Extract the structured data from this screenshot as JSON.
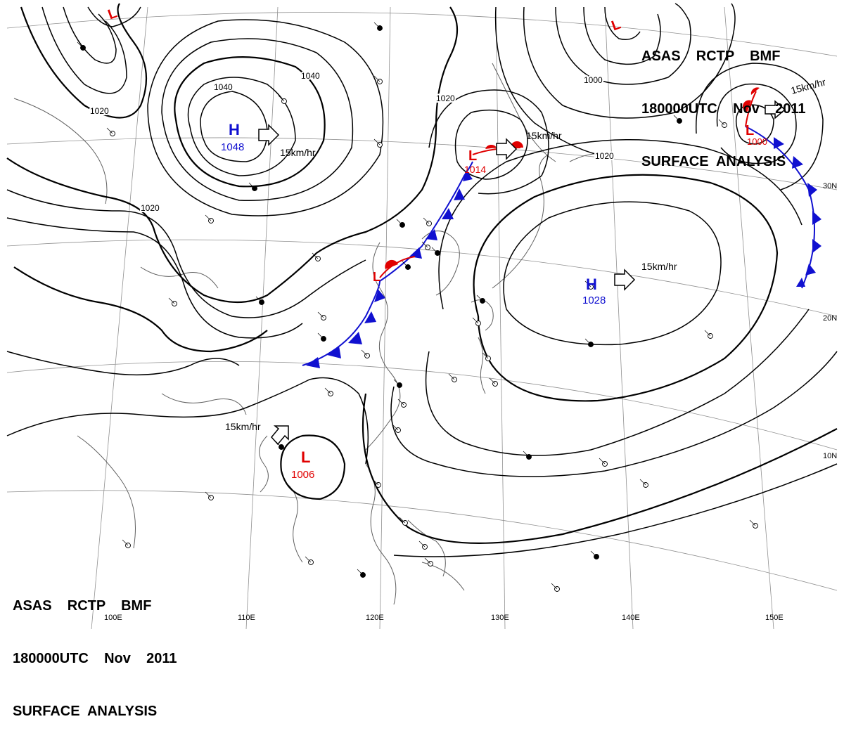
{
  "header_top": {
    "line1": "ASAS    RCTP    BMF",
    "line2": "180000UTC    Nov    2011",
    "line3": "SURFACE  ANALYSIS"
  },
  "header_bottom": {
    "line1": "ASAS    RCTP    BMF",
    "line2": "180000UTC    Nov    2011",
    "line3": "SURFACE  ANALYSIS"
  },
  "colors": {
    "high": "#1010d0",
    "low": "#e00000",
    "isobar": "#000000",
    "coast": "#606060",
    "grid": "#909090"
  },
  "latitude_labels": [
    "30N",
    "20N",
    "10N"
  ],
  "longitude_labels": [
    "100E",
    "110E",
    "120E",
    "130E",
    "140E",
    "150E"
  ],
  "isobar_labels": [
    "1020",
    "1040",
    "1040",
    "1020",
    "1020",
    "1000",
    "1020"
  ],
  "pressure_centers": [
    {
      "type": "H",
      "value": "1048",
      "motion": "15km/hr"
    },
    {
      "type": "H",
      "value": "1028",
      "motion": "15km/hr"
    },
    {
      "type": "L",
      "value": "1014",
      "motion": "15km/hr"
    },
    {
      "type": "L",
      "value": "1000",
      "motion": "15km/hr"
    },
    {
      "type": "L",
      "value": "1006",
      "motion": "15km/hr"
    },
    {
      "type": "L",
      "value": "",
      "motion": ""
    },
    {
      "type": "L",
      "value": "",
      "motion": ""
    },
    {
      "type": "L",
      "value": "",
      "motion": ""
    }
  ]
}
